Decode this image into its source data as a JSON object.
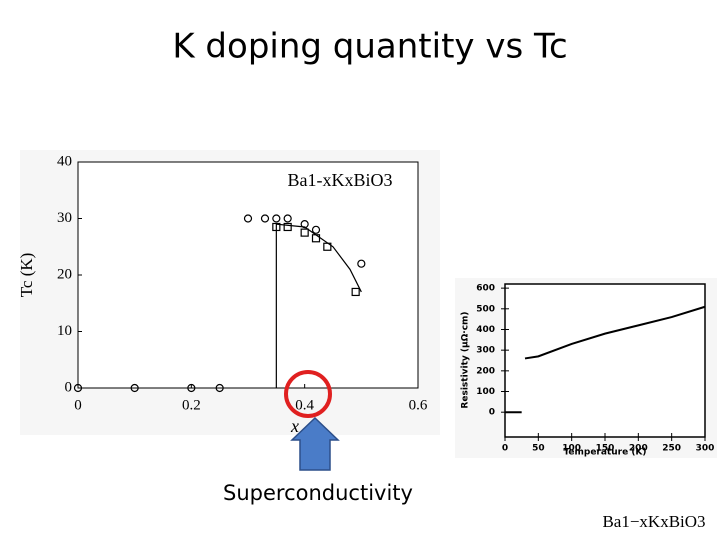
{
  "title": "K doping quantity vs Tc",
  "annotation": "Superconductivity",
  "caption": "Ba1−xKxBiO3",
  "chart_data": [
    {
      "type": "scatter",
      "annotation": "Ba1-xKxBiO3",
      "x_label": "x",
      "y_label": "Tc (K)",
      "xlim": [
        0,
        0.6
      ],
      "ylim": [
        0,
        40
      ],
      "xticks": [
        0,
        0.2,
        0.4,
        0.6
      ],
      "yticks": [
        0,
        10,
        20,
        30,
        40
      ],
      "series": [
        {
          "marker": "circle",
          "color": "#000000",
          "x": [
            0,
            0.1,
            0.2,
            0.25,
            0.3,
            0.33,
            0.35,
            0.37,
            0.4,
            0.42,
            0.5
          ],
          "values": [
            0,
            0,
            0,
            0,
            30,
            30,
            30,
            30,
            29,
            28,
            22
          ]
        },
        {
          "marker": "square",
          "color": "#000000",
          "x": [
            0.35,
            0.37,
            0.4,
            0.42,
            0.44,
            0.49
          ],
          "values": [
            28.5,
            28.5,
            27.5,
            26.5,
            25,
            17
          ]
        },
        {
          "marker": "none",
          "color": "#000000",
          "x": [
            0.35,
            0.35,
            0.4,
            0.45,
            0.48,
            0.5
          ],
          "values": [
            0,
            29,
            28.5,
            25,
            21,
            17
          ]
        }
      ]
    },
    {
      "type": "line",
      "x_label": "Temperature (K)",
      "y_label": "Resistivity (μΩ·cm)",
      "xlim": [
        0,
        300
      ],
      "ylim": [
        -120,
        620
      ],
      "xticks": [
        0,
        50,
        100,
        150,
        200,
        250,
        300
      ],
      "yticks": [
        0,
        100,
        200,
        300,
        400,
        500,
        600
      ],
      "series": [
        {
          "marker": "none",
          "color": "#000000",
          "x": [
            0,
            25,
            25,
            30,
            50,
            100,
            150,
            200,
            250,
            300
          ],
          "values": [
            0,
            0,
            null,
            260,
            270,
            330,
            380,
            420,
            460,
            510
          ]
        }
      ]
    }
  ]
}
